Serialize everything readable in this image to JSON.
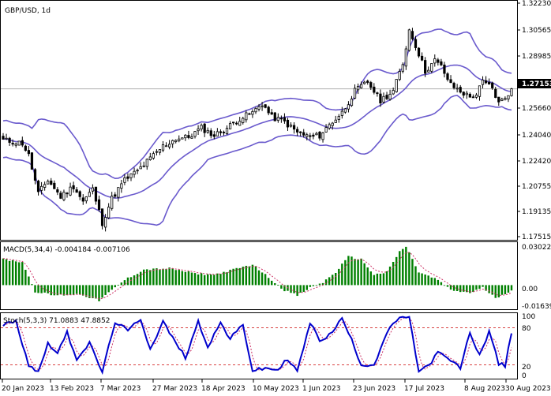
{
  "title": "GBP/USD, 1d",
  "price_axis": [
    "1.32230",
    "1.30565",
    "1.28985",
    "1.27153",
    "1.25660",
    "1.24040",
    "1.22420",
    "1.20755",
    "1.19135",
    "1.17515"
  ],
  "current_price": "1.27153",
  "macd": {
    "label": "MACD(5,34,4) -0.004184 -0.007106",
    "axis": [
      "0.03022",
      "0.00",
      "-0.01639"
    ]
  },
  "stoch": {
    "label": "Stoch(5,3,3) 71.0883 47.8852",
    "axis": [
      "100",
      "80",
      "20",
      "0"
    ]
  },
  "time_axis": [
    "20 Jan 2023",
    "13 Feb 2023",
    "7 Mar 2023",
    "27 Mar 2023",
    "18 Apr 2023",
    "10 May 2023",
    "1 Jun 2023",
    "23 Jun 2023",
    "17 Jul 2023",
    "8 Aug 2023",
    "30 Aug 2023"
  ],
  "colors": {
    "bands": "#6a5acd",
    "candle_up": "#ffffff",
    "candle_down": "#000000",
    "macd_hist": "#008000",
    "macd_signal": "#cc3366",
    "stoch_main": "#0000cc",
    "stoch_signal": "#cc3366",
    "level_line": "#cc0000"
  },
  "chart_data": {
    "type": "candlestick",
    "symbol": "GBP/USD",
    "timeframe": "1d",
    "indicators": [
      "Bollinger Bands",
      "MACD(5,34,4)",
      "Stoch(5,3,3)"
    ],
    "ylim": [
      1.175,
      1.3285
    ],
    "close_waypoints": [
      [
        0,
        1.238
      ],
      [
        6,
        1.236
      ],
      [
        8,
        1.228
      ],
      [
        11,
        1.203
      ],
      [
        14,
        1.212
      ],
      [
        18,
        1.201
      ],
      [
        22,
        1.208
      ],
      [
        25,
        1.198
      ],
      [
        28,
        1.206
      ],
      [
        31,
        1.184
      ],
      [
        34,
        1.2
      ],
      [
        38,
        1.212
      ],
      [
        42,
        1.218
      ],
      [
        46,
        1.226
      ],
      [
        50,
        1.234
      ],
      [
        54,
        1.239
      ],
      [
        58,
        1.24
      ],
      [
        62,
        1.246
      ],
      [
        66,
        1.241
      ],
      [
        70,
        1.246
      ],
      [
        74,
        1.252
      ],
      [
        78,
        1.256
      ],
      [
        81,
        1.262
      ],
      [
        84,
        1.253
      ],
      [
        88,
        1.25
      ],
      [
        92,
        1.243
      ],
      [
        96,
        1.24
      ],
      [
        99,
        1.241
      ],
      [
        102,
        1.248
      ],
      [
        106,
        1.256
      ],
      [
        110,
        1.27
      ],
      [
        114,
        1.276
      ],
      [
        118,
        1.264
      ],
      [
        122,
        1.27
      ],
      [
        125,
        1.288
      ],
      [
        127,
        1.31
      ],
      [
        129,
        1.3
      ],
      [
        132,
        1.283
      ],
      [
        135,
        1.29
      ],
      [
        137,
        1.286
      ],
      [
        140,
        1.274
      ],
      [
        143,
        1.27
      ],
      [
        146,
        1.266
      ],
      [
        148,
        1.268
      ],
      [
        150,
        1.276
      ],
      [
        153,
        1.272
      ],
      [
        155,
        1.262
      ],
      [
        157,
        1.266
      ],
      [
        159,
        1.27153
      ]
    ],
    "macd": {
      "current_main": -0.004184,
      "current_signal": -0.007106,
      "hist_waypoints": [
        [
          0,
          0.02
        ],
        [
          6,
          0.018
        ],
        [
          10,
          -0.005
        ],
        [
          16,
          -0.008
        ],
        [
          24,
          -0.007
        ],
        [
          30,
          -0.012
        ],
        [
          34,
          -0.004
        ],
        [
          38,
          0.004
        ],
        [
          44,
          0.012
        ],
        [
          52,
          0.013
        ],
        [
          60,
          0.009
        ],
        [
          66,
          0.008
        ],
        [
          72,
          0.012
        ],
        [
          78,
          0.016
        ],
        [
          82,
          0.008
        ],
        [
          88,
          -0.004
        ],
        [
          92,
          -0.008
        ],
        [
          96,
          -0.002
        ],
        [
          100,
          0.002
        ],
        [
          104,
          0.01
        ],
        [
          108,
          0.022
        ],
        [
          112,
          0.02
        ],
        [
          116,
          0.008
        ],
        [
          120,
          0.01
        ],
        [
          124,
          0.026
        ],
        [
          126,
          0.03
        ],
        [
          130,
          0.01
        ],
        [
          136,
          0.004
        ],
        [
          140,
          -0.004
        ],
        [
          146,
          -0.006
        ],
        [
          150,
          -0.002
        ],
        [
          154,
          -0.01
        ],
        [
          159,
          -0.004
        ]
      ]
    },
    "stoch": {
      "current_main": 71.0883,
      "current_signal": 47.8852,
      "levels": [
        80,
        20
      ],
      "main_waypoints": [
        [
          0,
          85
        ],
        [
          4,
          90
        ],
        [
          8,
          20
        ],
        [
          11,
          8
        ],
        [
          14,
          55
        ],
        [
          17,
          40
        ],
        [
          20,
          72
        ],
        [
          23,
          30
        ],
        [
          27,
          55
        ],
        [
          31,
          8
        ],
        [
          35,
          90
        ],
        [
          39,
          75
        ],
        [
          43,
          95
        ],
        [
          46,
          45
        ],
        [
          50,
          90
        ],
        [
          54,
          55
        ],
        [
          57,
          32
        ],
        [
          61,
          90
        ],
        [
          64,
          50
        ],
        [
          68,
          88
        ],
        [
          71,
          62
        ],
        [
          75,
          85
        ],
        [
          78,
          10
        ],
        [
          82,
          14
        ],
        [
          86,
          12
        ],
        [
          89,
          30
        ],
        [
          92,
          9
        ],
        [
          96,
          88
        ],
        [
          99,
          60
        ],
        [
          102,
          68
        ],
        [
          106,
          95
        ],
        [
          109,
          60
        ],
        [
          112,
          20
        ],
        [
          116,
          20
        ],
        [
          120,
          72
        ],
        [
          124,
          98
        ],
        [
          127,
          96
        ],
        [
          130,
          10
        ],
        [
          133,
          18
        ],
        [
          136,
          40
        ],
        [
          139,
          30
        ],
        [
          143,
          15
        ],
        [
          146,
          72
        ],
        [
          149,
          35
        ],
        [
          152,
          75
        ],
        [
          155,
          22
        ],
        [
          157,
          18
        ],
        [
          159,
          71
        ]
      ]
    }
  }
}
